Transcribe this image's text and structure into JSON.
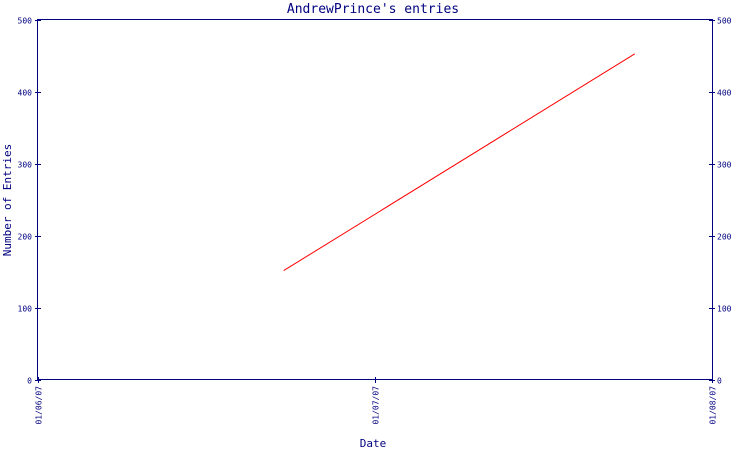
{
  "chart_data": {
    "type": "line",
    "title": "AndrewPrince's entries",
    "xlabel": "Date",
    "ylabel": "Number of Entries",
    "x_tick_labels": [
      "01/06/07",
      "01/07/07",
      "01/08/07"
    ],
    "y_tick_labels": [
      "0",
      "100",
      "200",
      "300",
      "400",
      "500"
    ],
    "y_ticks": [
      0,
      100,
      200,
      300,
      400,
      500
    ],
    "ylim": [
      0,
      500
    ],
    "xlim": [
      "2007-01-06",
      "2007-01-08"
    ],
    "grid": false,
    "series": [
      {
        "color": "#ff0000",
        "points": [
          {
            "x": "2007-01-06 17:30",
            "y": 152
          },
          {
            "x": "2007-01-07 18:30",
            "y": 453
          }
        ]
      }
    ]
  }
}
